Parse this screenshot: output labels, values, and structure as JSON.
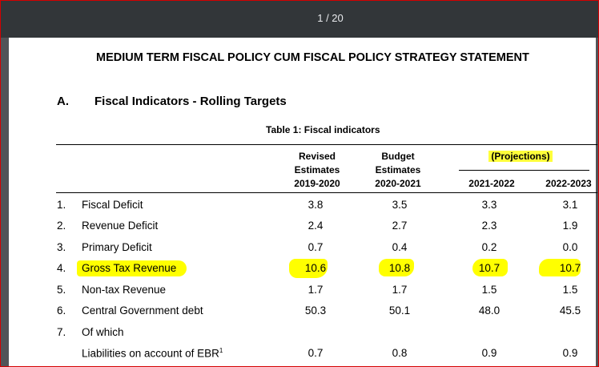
{
  "viewer": {
    "page_indicator": "1 / 20"
  },
  "document": {
    "title": "MEDIUM TERM FISCAL POLICY CUM FISCAL POLICY STRATEGY STATEMENT",
    "section_letter": "A.",
    "section_title": "Fiscal Indicators - Rolling Targets",
    "table_caption": "Table 1: Fiscal indicators"
  },
  "table": {
    "headers": {
      "col1": [
        "Revised",
        "Estimates",
        "2019-2020"
      ],
      "col2": [
        "Budget",
        "Estimates",
        "2020-2021"
      ],
      "projections": "(Projections)",
      "col3": "2021-2022",
      "col4": "2022-2023"
    },
    "rows": [
      {
        "num": "1.",
        "label": "Fiscal Deficit",
        "values": [
          "3.8",
          "3.5",
          "3.3",
          "3.1"
        ]
      },
      {
        "num": "2.",
        "label": "Revenue Deficit",
        "values": [
          "2.4",
          "2.7",
          "2.3",
          "1.9"
        ]
      },
      {
        "num": "3.",
        "label": "Primary Deficit",
        "values": [
          "0.7",
          "0.4",
          "0.2",
          "0.0"
        ]
      },
      {
        "num": "4.",
        "label": "Gross Tax Revenue",
        "values": [
          "10.6",
          "10.8",
          "10.7",
          "10.7"
        ]
      },
      {
        "num": "5.",
        "label": "Non-tax Revenue",
        "values": [
          "1.7",
          "1.7",
          "1.5",
          "1.5"
        ]
      },
      {
        "num": "6.",
        "label": "Central Government debt",
        "values": [
          "50.3",
          "50.1",
          "48.0",
          "45.5"
        ]
      },
      {
        "num": "7.",
        "label": "Of which",
        "values": [
          "",
          "",
          "",
          ""
        ]
      },
      {
        "num": "",
        "label": "Liabilities on account of EBR",
        "label_sup": "1",
        "values": [
          "0.7",
          "0.8",
          "0.9",
          "0.9"
        ]
      }
    ]
  },
  "colors": {
    "highlight": "#ffff00",
    "toolbar": "#323639",
    "border": "#d40000"
  }
}
